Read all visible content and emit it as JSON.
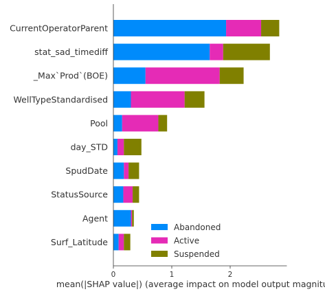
{
  "chart_data": {
    "type": "bar",
    "orientation": "horizontal",
    "stacked": true,
    "categories": [
      "CurrentOperatorParent",
      "stat_sad_timediff",
      "_Max`Prod`(BOE)",
      "WellTypeStandardised",
      "Pool",
      "day_STD",
      "SpudDate",
      "StatusSource",
      "Agent",
      "Surf_Latitude"
    ],
    "series": [
      {
        "name": "Abandoned",
        "color": "#008bfb",
        "values": [
          1.93,
          1.65,
          0.55,
          0.3,
          0.15,
          0.07,
          0.18,
          0.17,
          0.3,
          0.09
        ]
      },
      {
        "name": "Active",
        "color": "#e52bb6",
        "values": [
          0.6,
          0.23,
          1.27,
          0.92,
          0.62,
          0.11,
          0.08,
          0.16,
          0.02,
          0.09
        ]
      },
      {
        "name": "Suspended",
        "color": "#808000",
        "values": [
          0.31,
          0.8,
          0.41,
          0.34,
          0.15,
          0.3,
          0.18,
          0.11,
          0.03,
          0.11
        ]
      }
    ],
    "xlabel": "mean(|SHAP value|) (average impact on model output magnitude)",
    "xticks": [
      0,
      1,
      2
    ],
    "xlim": [
      0,
      2.97
    ],
    "grid": false,
    "legend_position": "lower-right"
  }
}
